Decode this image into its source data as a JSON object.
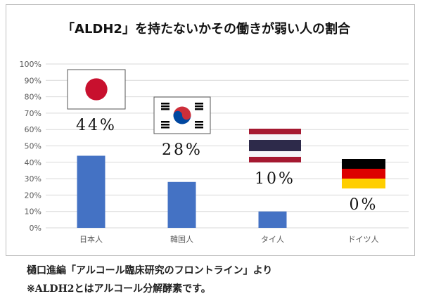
{
  "chart_data": {
    "type": "bar",
    "title": "「ALDH2」を持たないかその働きが弱い人の割合",
    "categories": [
      "日本人",
      "韓国人",
      "タイ人",
      "ドイツ人"
    ],
    "values": [
      44,
      28,
      10,
      0
    ],
    "value_labels": [
      "44%",
      "28%",
      "10%",
      "0%"
    ],
    "ylim": [
      0,
      100
    ],
    "yticks": [
      "0%",
      "10%",
      "20%",
      "30%",
      "40%",
      "50%",
      "60%",
      "70%",
      "80%",
      "90%",
      "100%"
    ],
    "grid": true,
    "bar_color": "#4472c4",
    "flags": [
      "japan-flag",
      "south-korea-flag",
      "thailand-flag",
      "germany-flag"
    ]
  },
  "footer": {
    "source": "樋口進編「アルコール臨床研究のフロントライン」より",
    "note": "※ALDH2とはアルコール分解酵素です。"
  }
}
